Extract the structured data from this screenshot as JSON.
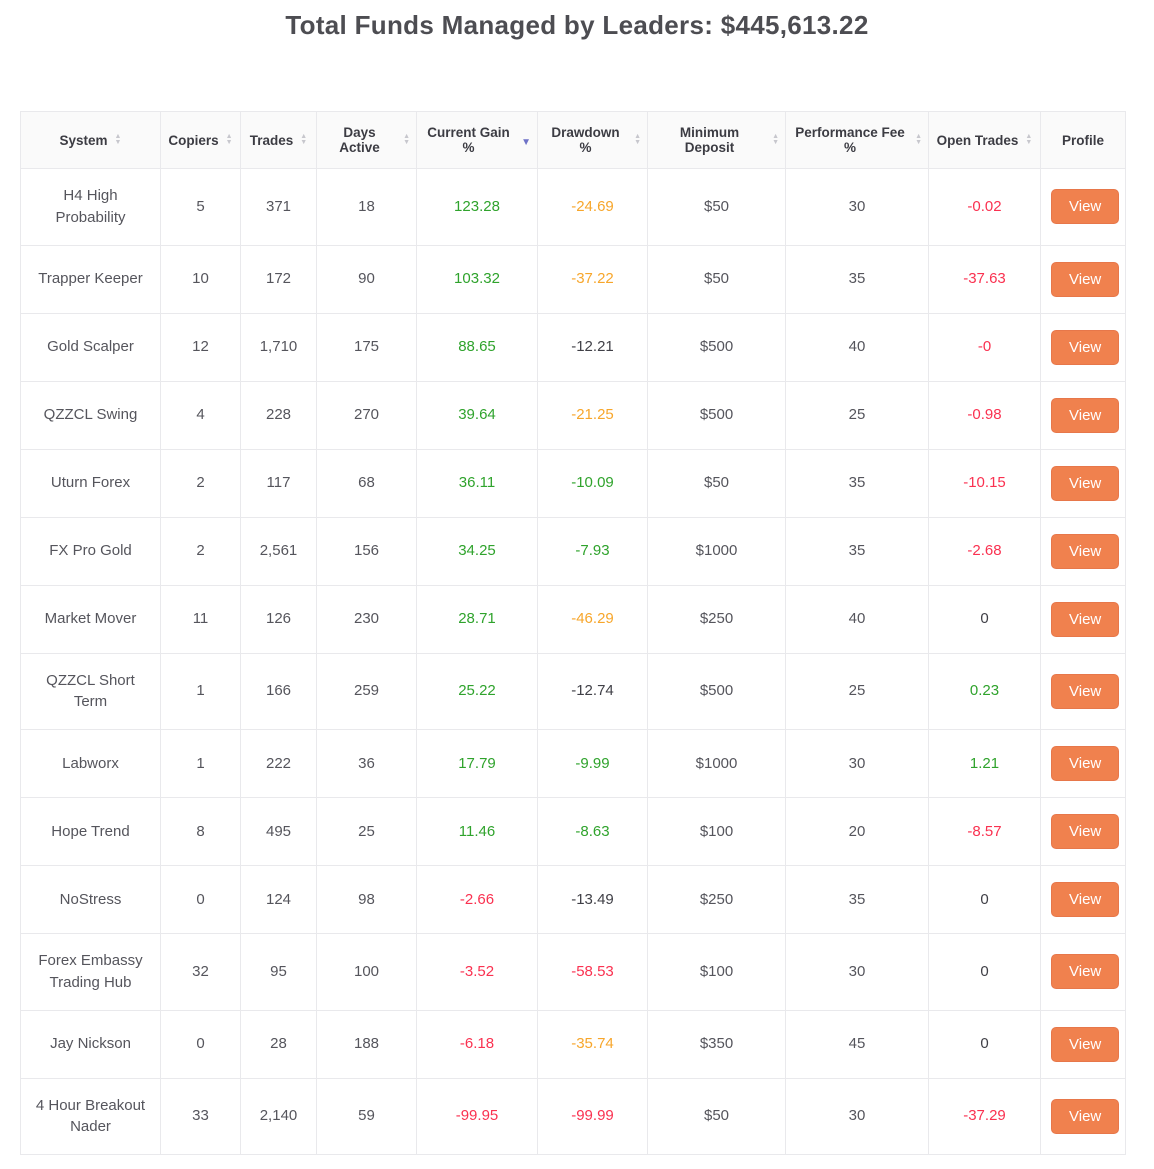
{
  "page": {
    "title": "Total Funds Managed by Leaders: $445,613.22"
  },
  "icons": {
    "sort_asc": "▲",
    "sort_desc": "▼"
  },
  "colors": {
    "green": "#2fa32c",
    "orange": "#f7a62b",
    "red": "#fa3150",
    "button": "#f0814e",
    "button_text": "#ffffff",
    "sort_active": "#6e72c7"
  },
  "table": {
    "view_label": "View",
    "columns": [
      {
        "label": "System",
        "sortable": true,
        "sort": "none"
      },
      {
        "label": "Copiers",
        "sortable": true,
        "sort": "none"
      },
      {
        "label": "Trades",
        "sortable": true,
        "sort": "none"
      },
      {
        "label": "Days Active",
        "sortable": true,
        "sort": "none"
      },
      {
        "label": "Current Gain %",
        "sortable": true,
        "sort": "desc"
      },
      {
        "label": "Drawdown %",
        "sortable": true,
        "sort": "none"
      },
      {
        "label": "Minimum Deposit",
        "sortable": true,
        "sort": "none"
      },
      {
        "label": "Performance Fee %",
        "sortable": true,
        "sort": "none"
      },
      {
        "label": "Open Trades",
        "sortable": true,
        "sort": "none"
      },
      {
        "label": "Profile",
        "sortable": false,
        "sort": "none"
      }
    ],
    "rows": [
      {
        "system": "H4 High Probability",
        "copiers": "5",
        "trades": "371",
        "days_active": "18",
        "current_gain": "123.28",
        "current_gain_color": "green",
        "drawdown": "-24.69",
        "drawdown_color": "orange",
        "min_deposit": "$50",
        "performance_fee": "30",
        "open_trades": "-0.02",
        "open_trades_color": "red"
      },
      {
        "system": "Trapper Keeper",
        "copiers": "10",
        "trades": "172",
        "days_active": "90",
        "current_gain": "103.32",
        "current_gain_color": "green",
        "drawdown": "-37.22",
        "drawdown_color": "orange",
        "min_deposit": "$50",
        "performance_fee": "35",
        "open_trades": "-37.63",
        "open_trades_color": "red"
      },
      {
        "system": "Gold Scalper",
        "copiers": "12",
        "trades": "1,710",
        "days_active": "175",
        "current_gain": "88.65",
        "current_gain_color": "green",
        "drawdown": "-12.21",
        "drawdown_color": "dark",
        "min_deposit": "$500",
        "performance_fee": "40",
        "open_trades": "-0",
        "open_trades_color": "red"
      },
      {
        "system": "QZZCL Swing",
        "copiers": "4",
        "trades": "228",
        "days_active": "270",
        "current_gain": "39.64",
        "current_gain_color": "green",
        "drawdown": "-21.25",
        "drawdown_color": "orange",
        "min_deposit": "$500",
        "performance_fee": "25",
        "open_trades": "-0.98",
        "open_trades_color": "red"
      },
      {
        "system": "Uturn Forex",
        "copiers": "2",
        "trades": "117",
        "days_active": "68",
        "current_gain": "36.11",
        "current_gain_color": "green",
        "drawdown": "-10.09",
        "drawdown_color": "green",
        "min_deposit": "$50",
        "performance_fee": "35",
        "open_trades": "-10.15",
        "open_trades_color": "red"
      },
      {
        "system": "FX Pro Gold",
        "copiers": "2",
        "trades": "2,561",
        "days_active": "156",
        "current_gain": "34.25",
        "current_gain_color": "green",
        "drawdown": "-7.93",
        "drawdown_color": "green",
        "min_deposit": "$1000",
        "performance_fee": "35",
        "open_trades": "-2.68",
        "open_trades_color": "red"
      },
      {
        "system": "Market Mover",
        "copiers": "11",
        "trades": "126",
        "days_active": "230",
        "current_gain": "28.71",
        "current_gain_color": "green",
        "drawdown": "-46.29",
        "drawdown_color": "orange",
        "min_deposit": "$250",
        "performance_fee": "40",
        "open_trades": "0",
        "open_trades_color": "dark"
      },
      {
        "system": "QZZCL Short Term",
        "copiers": "1",
        "trades": "166",
        "days_active": "259",
        "current_gain": "25.22",
        "current_gain_color": "green",
        "drawdown": "-12.74",
        "drawdown_color": "dark",
        "min_deposit": "$500",
        "performance_fee": "25",
        "open_trades": "0.23",
        "open_trades_color": "green"
      },
      {
        "system": "Labworx",
        "copiers": "1",
        "trades": "222",
        "days_active": "36",
        "current_gain": "17.79",
        "current_gain_color": "green",
        "drawdown": "-9.99",
        "drawdown_color": "green",
        "min_deposit": "$1000",
        "performance_fee": "30",
        "open_trades": "1.21",
        "open_trades_color": "green"
      },
      {
        "system": "Hope Trend",
        "copiers": "8",
        "trades": "495",
        "days_active": "25",
        "current_gain": "11.46",
        "current_gain_color": "green",
        "drawdown": "-8.63",
        "drawdown_color": "green",
        "min_deposit": "$100",
        "performance_fee": "20",
        "open_trades": "-8.57",
        "open_trades_color": "red"
      },
      {
        "system": "NoStress",
        "copiers": "0",
        "trades": "124",
        "days_active": "98",
        "current_gain": "-2.66",
        "current_gain_color": "red",
        "drawdown": "-13.49",
        "drawdown_color": "dark",
        "min_deposit": "$250",
        "performance_fee": "35",
        "open_trades": "0",
        "open_trades_color": "dark"
      },
      {
        "system": "Forex Embassy Trading Hub",
        "copiers": "32",
        "trades": "95",
        "days_active": "100",
        "current_gain": "-3.52",
        "current_gain_color": "red",
        "drawdown": "-58.53",
        "drawdown_color": "red",
        "min_deposit": "$100",
        "performance_fee": "30",
        "open_trades": "0",
        "open_trades_color": "dark"
      },
      {
        "system": "Jay Nickson",
        "copiers": "0",
        "trades": "28",
        "days_active": "188",
        "current_gain": "-6.18",
        "current_gain_color": "red",
        "drawdown": "-35.74",
        "drawdown_color": "orange",
        "min_deposit": "$350",
        "performance_fee": "45",
        "open_trades": "0",
        "open_trades_color": "dark"
      },
      {
        "system": "4 Hour Breakout Nader",
        "copiers": "33",
        "trades": "2,140",
        "days_active": "59",
        "current_gain": "-99.95",
        "current_gain_color": "red",
        "drawdown": "-99.99",
        "drawdown_color": "red",
        "min_deposit": "$50",
        "performance_fee": "30",
        "open_trades": "-37.29",
        "open_trades_color": "red"
      }
    ]
  }
}
